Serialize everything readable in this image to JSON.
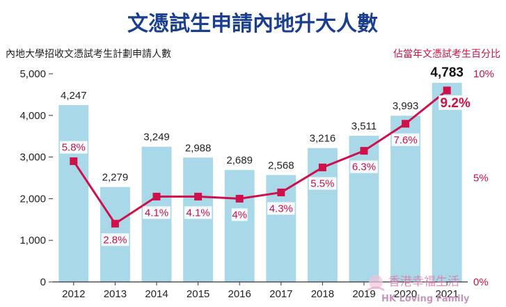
{
  "chart_data": {
    "type": "bar",
    "title": "文憑試生申請內地升大人數",
    "left_axis_title": "內地大學招收文憑試考生計劃申請人數",
    "right_axis_title": "佔當年文憑試考生百分比",
    "categories": [
      "2012",
      "2013",
      "2014",
      "2015",
      "2016",
      "2017",
      "2018",
      "2019",
      "2020",
      "2021"
    ],
    "series": [
      {
        "type": "bar",
        "axis": "left",
        "values": [
          4247,
          2279,
          3249,
          2988,
          2689,
          2568,
          3216,
          3511,
          3993,
          4783
        ],
        "labels": [
          "4,247",
          "2,279",
          "3,249",
          "2,988",
          "2,689",
          "2,568",
          "3,216",
          "3,511",
          "3,993",
          "4,783"
        ],
        "color": "#a9d8e8"
      },
      {
        "type": "line",
        "axis": "right",
        "values": [
          5.8,
          2.8,
          4.1,
          4.1,
          4.0,
          4.3,
          5.5,
          6.3,
          7.6,
          9.2
        ],
        "labels": [
          "5.8%",
          "2.8%",
          "4.1%",
          "4.1%",
          "4%",
          "4.3%",
          "5.5%",
          "6.3%",
          "7.6%",
          "9.2%"
        ],
        "color": "#d0104a"
      }
    ],
    "ylim": [
      0,
      5000
    ],
    "y_ticks": [
      "0",
      "1,000",
      "2,000",
      "3,000",
      "4,000",
      "5,000"
    ],
    "y2lim": [
      0,
      10
    ],
    "y2_ticks": [
      "0%",
      "5%",
      "10%"
    ],
    "grid": false,
    "highlight_category": "2021"
  },
  "watermark": {
    "line1": "香港幸福生活",
    "line2": "HK Loving Family"
  }
}
